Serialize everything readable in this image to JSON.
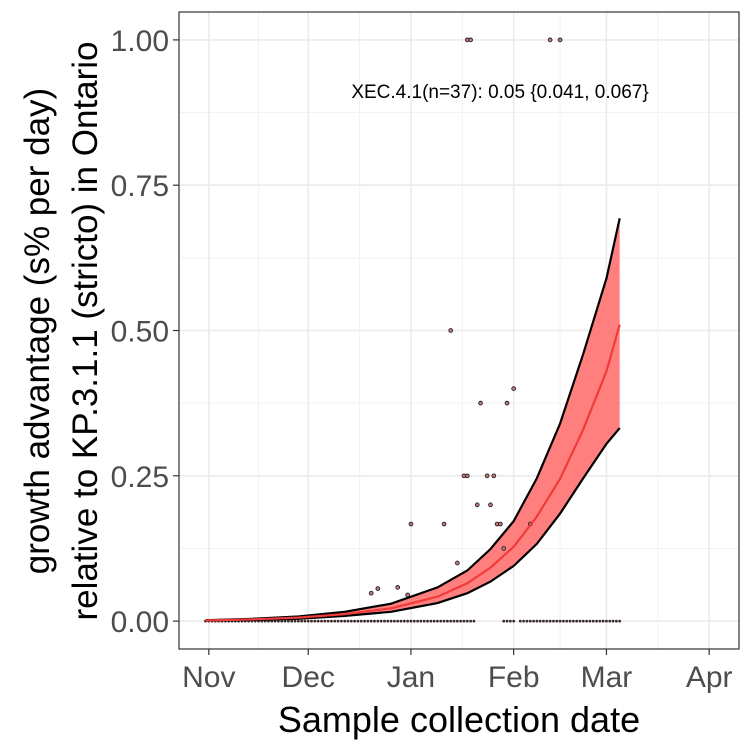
{
  "chart_data": {
    "type": "line",
    "xlabel": "Sample collection date",
    "ylabel_line1": "growth advantage (s% per day)",
    "ylabel_line2": "relative to KP.3.1.1 (stricto) in Ontario",
    "x_ticks": [
      {
        "label": "Nov",
        "date": "2024-11-01"
      },
      {
        "label": "Dec",
        "date": "2024-12-01"
      },
      {
        "label": "Jan",
        "date": "2025-01-01"
      },
      {
        "label": "Feb",
        "date": "2025-02-01"
      },
      {
        "label": "Mar",
        "date": "2025-03-01"
      },
      {
        "label": "Apr",
        "date": "2025-04-01"
      }
    ],
    "xlim": [
      "2024-10-23",
      "2025-04-10"
    ],
    "y_ticks": [
      "0.00",
      "0.25",
      "0.50",
      "0.75",
      "1.00"
    ],
    "ylim": [
      -0.048,
      1.048
    ],
    "grid": true,
    "annotation": "XEC.4.1(n=37): 0.05 {0.041, 0.067}",
    "fit": {
      "name": "XEC.4.1",
      "color": "#ef3b3b",
      "ribbon_color": "#ff7f7f",
      "x": [
        "2024-10-31",
        "2024-11-14",
        "2024-11-28",
        "2024-12-12",
        "2024-12-26",
        "2025-01-09",
        "2025-01-18",
        "2025-01-25",
        "2025-02-01",
        "2025-02-08",
        "2025-02-15",
        "2025-02-22",
        "2025-03-01",
        "2025-03-05"
      ],
      "mid": [
        0.001,
        0.003,
        0.006,
        0.012,
        0.022,
        0.042,
        0.065,
        0.092,
        0.128,
        0.18,
        0.245,
        0.33,
        0.43,
        0.51
      ],
      "lower": [
        0.0008,
        0.002,
        0.004,
        0.009,
        0.016,
        0.031,
        0.048,
        0.068,
        0.095,
        0.133,
        0.185,
        0.246,
        0.305,
        0.332
      ],
      "upper": [
        0.0015,
        0.004,
        0.008,
        0.016,
        0.03,
        0.058,
        0.087,
        0.124,
        0.172,
        0.246,
        0.34,
        0.46,
        0.59,
        0.693
      ]
    },
    "points": [
      {
        "x": "2024-12-20",
        "y": 0.048
      },
      {
        "x": "2024-12-22",
        "y": 0.056
      },
      {
        "x": "2024-12-28",
        "y": 0.058
      },
      {
        "x": "2024-12-31",
        "y": 0.045
      },
      {
        "x": "2025-01-01",
        "y": 0.167
      },
      {
        "x": "2025-01-11",
        "y": 0.167
      },
      {
        "x": "2025-01-13",
        "y": 0.5
      },
      {
        "x": "2025-01-15",
        "y": 0.1
      },
      {
        "x": "2025-01-17",
        "y": 0.25
      },
      {
        "x": "2025-01-18",
        "y": 0.25
      },
      {
        "x": "2025-01-18",
        "y": 1.0
      },
      {
        "x": "2025-01-19",
        "y": 1.0
      },
      {
        "x": "2025-01-22",
        "y": 0.375
      },
      {
        "x": "2025-01-21",
        "y": 0.2
      },
      {
        "x": "2025-01-24",
        "y": 0.25
      },
      {
        "x": "2025-01-25",
        "y": 0.2
      },
      {
        "x": "2025-01-26",
        "y": 0.25
      },
      {
        "x": "2025-01-27",
        "y": 0.167
      },
      {
        "x": "2025-01-28",
        "y": 0.167
      },
      {
        "x": "2025-01-29",
        "y": 0.125
      },
      {
        "x": "2025-01-30",
        "y": 0.375
      },
      {
        "x": "2025-02-01",
        "y": 0.4
      },
      {
        "x": "2025-02-06",
        "y": 0.167
      },
      {
        "x": "2025-02-12",
        "y": 1.0
      },
      {
        "x": "2025-02-15",
        "y": 1.0
      }
    ],
    "zero_points": {
      "from": "2024-10-31",
      "to": "2025-03-05",
      "step_days": 1,
      "gaps": [
        [
          "2025-01-21",
          "2025-01-28"
        ],
        [
          "2025-02-02",
          "2025-02-02"
        ]
      ]
    }
  }
}
